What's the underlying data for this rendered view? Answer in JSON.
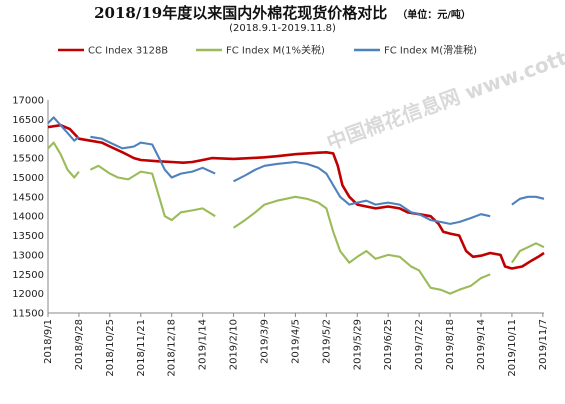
{
  "chart_data": {
    "type": "line",
    "title": "2018/19年度以来国内外棉花现货价格对比",
    "unit": "（单位：元/吨）",
    "subtitle": "(2018.9.1-2019.11.8)",
    "watermark": "中国棉花信息网 www.cottonchina.org",
    "ylim": [
      11500,
      17000
    ],
    "yticks": [
      11500,
      12000,
      12500,
      13000,
      13500,
      14000,
      14500,
      15000,
      15500,
      16000,
      16500,
      17000
    ],
    "x_range": [
      "2018-09-01",
      "2019-11-08"
    ],
    "xticks": [
      "2018/9/1",
      "2018/9/28",
      "2018/10/25",
      "2018/11/21",
      "2018/12/18",
      "2019/1/14",
      "2019/2/10",
      "2019/3/9",
      "2019/4/5",
      "2019/5/2",
      "2019/5/29",
      "2019/6/25",
      "2019/7/22",
      "2019/8/18",
      "2019/9/14",
      "2019/10/11",
      "2019/11/7"
    ],
    "grid": false,
    "legend_position": "top",
    "series": [
      {
        "name": "CC Index 3128B",
        "color": "#c00000",
        "points": [
          [
            "2018-09-01",
            16300
          ],
          [
            "2018-09-12",
            16350
          ],
          [
            "2018-09-20",
            16250
          ],
          [
            "2018-09-28",
            16000
          ],
          [
            "2018-10-08",
            15950
          ],
          [
            "2018-10-18",
            15900
          ],
          [
            "2018-10-25",
            15800
          ],
          [
            "2018-11-05",
            15650
          ],
          [
            "2018-11-15",
            15500
          ],
          [
            "2018-11-21",
            15450
          ],
          [
            "2018-12-05",
            15420
          ],
          [
            "2018-12-18",
            15400
          ],
          [
            "2018-12-28",
            15380
          ],
          [
            "2019-01-05",
            15400
          ],
          [
            "2019-01-14",
            15450
          ],
          [
            "2019-01-22",
            15500
          ],
          [
            "2019-02-10",
            15480
          ],
          [
            "2019-02-25",
            15500
          ],
          [
            "2019-03-09",
            15520
          ],
          [
            "2019-03-20",
            15550
          ],
          [
            "2019-04-05",
            15600
          ],
          [
            "2019-04-15",
            15620
          ],
          [
            "2019-04-25",
            15640
          ],
          [
            "2019-05-02",
            15650
          ],
          [
            "2019-05-08",
            15620
          ],
          [
            "2019-05-12",
            15300
          ],
          [
            "2019-05-16",
            14800
          ],
          [
            "2019-05-22",
            14500
          ],
          [
            "2019-05-29",
            14300
          ],
          [
            "2019-06-06",
            14250
          ],
          [
            "2019-06-14",
            14200
          ],
          [
            "2019-06-25",
            14250
          ],
          [
            "2019-07-05",
            14200
          ],
          [
            "2019-07-12",
            14100
          ],
          [
            "2019-07-22",
            14050
          ],
          [
            "2019-08-01",
            14000
          ],
          [
            "2019-08-08",
            13800
          ],
          [
            "2019-08-12",
            13600
          ],
          [
            "2019-08-18",
            13550
          ],
          [
            "2019-08-26",
            13500
          ],
          [
            "2019-09-01",
            13100
          ],
          [
            "2019-09-07",
            12950
          ],
          [
            "2019-09-14",
            12980
          ],
          [
            "2019-09-22",
            13050
          ],
          [
            "2019-10-01",
            13000
          ],
          [
            "2019-10-05",
            12700
          ],
          [
            "2019-10-11",
            12650
          ],
          [
            "2019-10-20",
            12700
          ],
          [
            "2019-10-28",
            12850
          ],
          [
            "2019-11-03",
            12950
          ],
          [
            "2019-11-08",
            13050
          ]
        ]
      },
      {
        "name": "FC Index M(1%关税)",
        "color": "#9bbb59",
        "points": [
          [
            "2018-09-01",
            15750
          ],
          [
            "2018-09-06",
            15900
          ],
          [
            "2018-09-12",
            15600
          ],
          [
            "2018-09-18",
            15200
          ],
          [
            "2018-09-24",
            15000
          ],
          [
            "2018-09-28",
            15150
          ],
          [
            "2018-10-05",
            null
          ],
          [
            "2018-10-08",
            15200
          ],
          [
            "2018-10-15",
            15300
          ],
          [
            "2018-10-25",
            15100
          ],
          [
            "2018-11-01",
            15000
          ],
          [
            "2018-11-10",
            14950
          ],
          [
            "2018-11-21",
            15150
          ],
          [
            "2018-12-01",
            15100
          ],
          [
            "2018-12-07",
            14500
          ],
          [
            "2018-12-12",
            14000
          ],
          [
            "2018-12-18",
            13900
          ],
          [
            "2018-12-26",
            14100
          ],
          [
            "2019-01-05",
            14150
          ],
          [
            "2019-01-14",
            14200
          ],
          [
            "2019-01-25",
            14000
          ],
          [
            "2019-02-02",
            null
          ],
          [
            "2019-02-10",
            13700
          ],
          [
            "2019-02-20",
            13900
          ],
          [
            "2019-03-01",
            14100
          ],
          [
            "2019-03-09",
            14300
          ],
          [
            "2019-03-20",
            14400
          ],
          [
            "2019-04-05",
            14500
          ],
          [
            "2019-04-15",
            14450
          ],
          [
            "2019-04-25",
            14350
          ],
          [
            "2019-05-02",
            14200
          ],
          [
            "2019-05-08",
            13600
          ],
          [
            "2019-05-14",
            13100
          ],
          [
            "2019-05-22",
            12800
          ],
          [
            "2019-05-29",
            12950
          ],
          [
            "2019-06-06",
            13100
          ],
          [
            "2019-06-14",
            12900
          ],
          [
            "2019-06-25",
            13000
          ],
          [
            "2019-07-05",
            12950
          ],
          [
            "2019-07-15",
            12700
          ],
          [
            "2019-07-22",
            12600
          ],
          [
            "2019-08-01",
            12150
          ],
          [
            "2019-08-10",
            12100
          ],
          [
            "2019-08-18",
            12000
          ],
          [
            "2019-08-26",
            12100
          ],
          [
            "2019-09-05",
            12200
          ],
          [
            "2019-09-14",
            12400
          ],
          [
            "2019-09-22",
            12500
          ],
          [
            "2019-10-01",
            null
          ],
          [
            "2019-10-11",
            12800
          ],
          [
            "2019-10-18",
            13100
          ],
          [
            "2019-10-25",
            13200
          ],
          [
            "2019-11-01",
            13300
          ],
          [
            "2019-11-08",
            13200
          ]
        ]
      },
      {
        "name": "FC Index M(滑准税)",
        "color": "#4f81bd",
        "points": [
          [
            "2018-09-01",
            16400
          ],
          [
            "2018-09-06",
            16550
          ],
          [
            "2018-09-12",
            16350
          ],
          [
            "2018-09-18",
            16150
          ],
          [
            "2018-09-24",
            15950
          ],
          [
            "2018-09-28",
            16050
          ],
          [
            "2018-10-05",
            null
          ],
          [
            "2018-10-08",
            16050
          ],
          [
            "2018-10-18",
            16000
          ],
          [
            "2018-10-25",
            15900
          ],
          [
            "2018-11-05",
            15750
          ],
          [
            "2018-11-15",
            15800
          ],
          [
            "2018-11-21",
            15900
          ],
          [
            "2018-12-01",
            15850
          ],
          [
            "2018-12-07",
            15500
          ],
          [
            "2018-12-12",
            15200
          ],
          [
            "2018-12-18",
            15000
          ],
          [
            "2018-12-26",
            15100
          ],
          [
            "2019-01-05",
            15150
          ],
          [
            "2019-01-14",
            15250
          ],
          [
            "2019-01-25",
            15100
          ],
          [
            "2019-02-02",
            null
          ],
          [
            "2019-02-10",
            14900
          ],
          [
            "2019-02-20",
            15050
          ],
          [
            "2019-03-01",
            15200
          ],
          [
            "2019-03-09",
            15300
          ],
          [
            "2019-03-20",
            15350
          ],
          [
            "2019-04-05",
            15400
          ],
          [
            "2019-04-15",
            15350
          ],
          [
            "2019-04-25",
            15250
          ],
          [
            "2019-05-02",
            15100
          ],
          [
            "2019-05-08",
            14800
          ],
          [
            "2019-05-14",
            14500
          ],
          [
            "2019-05-22",
            14300
          ],
          [
            "2019-05-29",
            14350
          ],
          [
            "2019-06-06",
            14400
          ],
          [
            "2019-06-14",
            14300
          ],
          [
            "2019-06-25",
            14350
          ],
          [
            "2019-07-05",
            14300
          ],
          [
            "2019-07-15",
            14100
          ],
          [
            "2019-07-22",
            14050
          ],
          [
            "2019-08-01",
            13900
          ],
          [
            "2019-08-10",
            13850
          ],
          [
            "2019-08-18",
            13800
          ],
          [
            "2019-08-26",
            13850
          ],
          [
            "2019-09-05",
            13950
          ],
          [
            "2019-09-14",
            14050
          ],
          [
            "2019-09-22",
            14000
          ],
          [
            "2019-10-01",
            null
          ],
          [
            "2019-10-11",
            14300
          ],
          [
            "2019-10-18",
            14450
          ],
          [
            "2019-10-25",
            14500
          ],
          [
            "2019-11-01",
            14500
          ],
          [
            "2019-11-08",
            14450
          ]
        ]
      }
    ]
  }
}
